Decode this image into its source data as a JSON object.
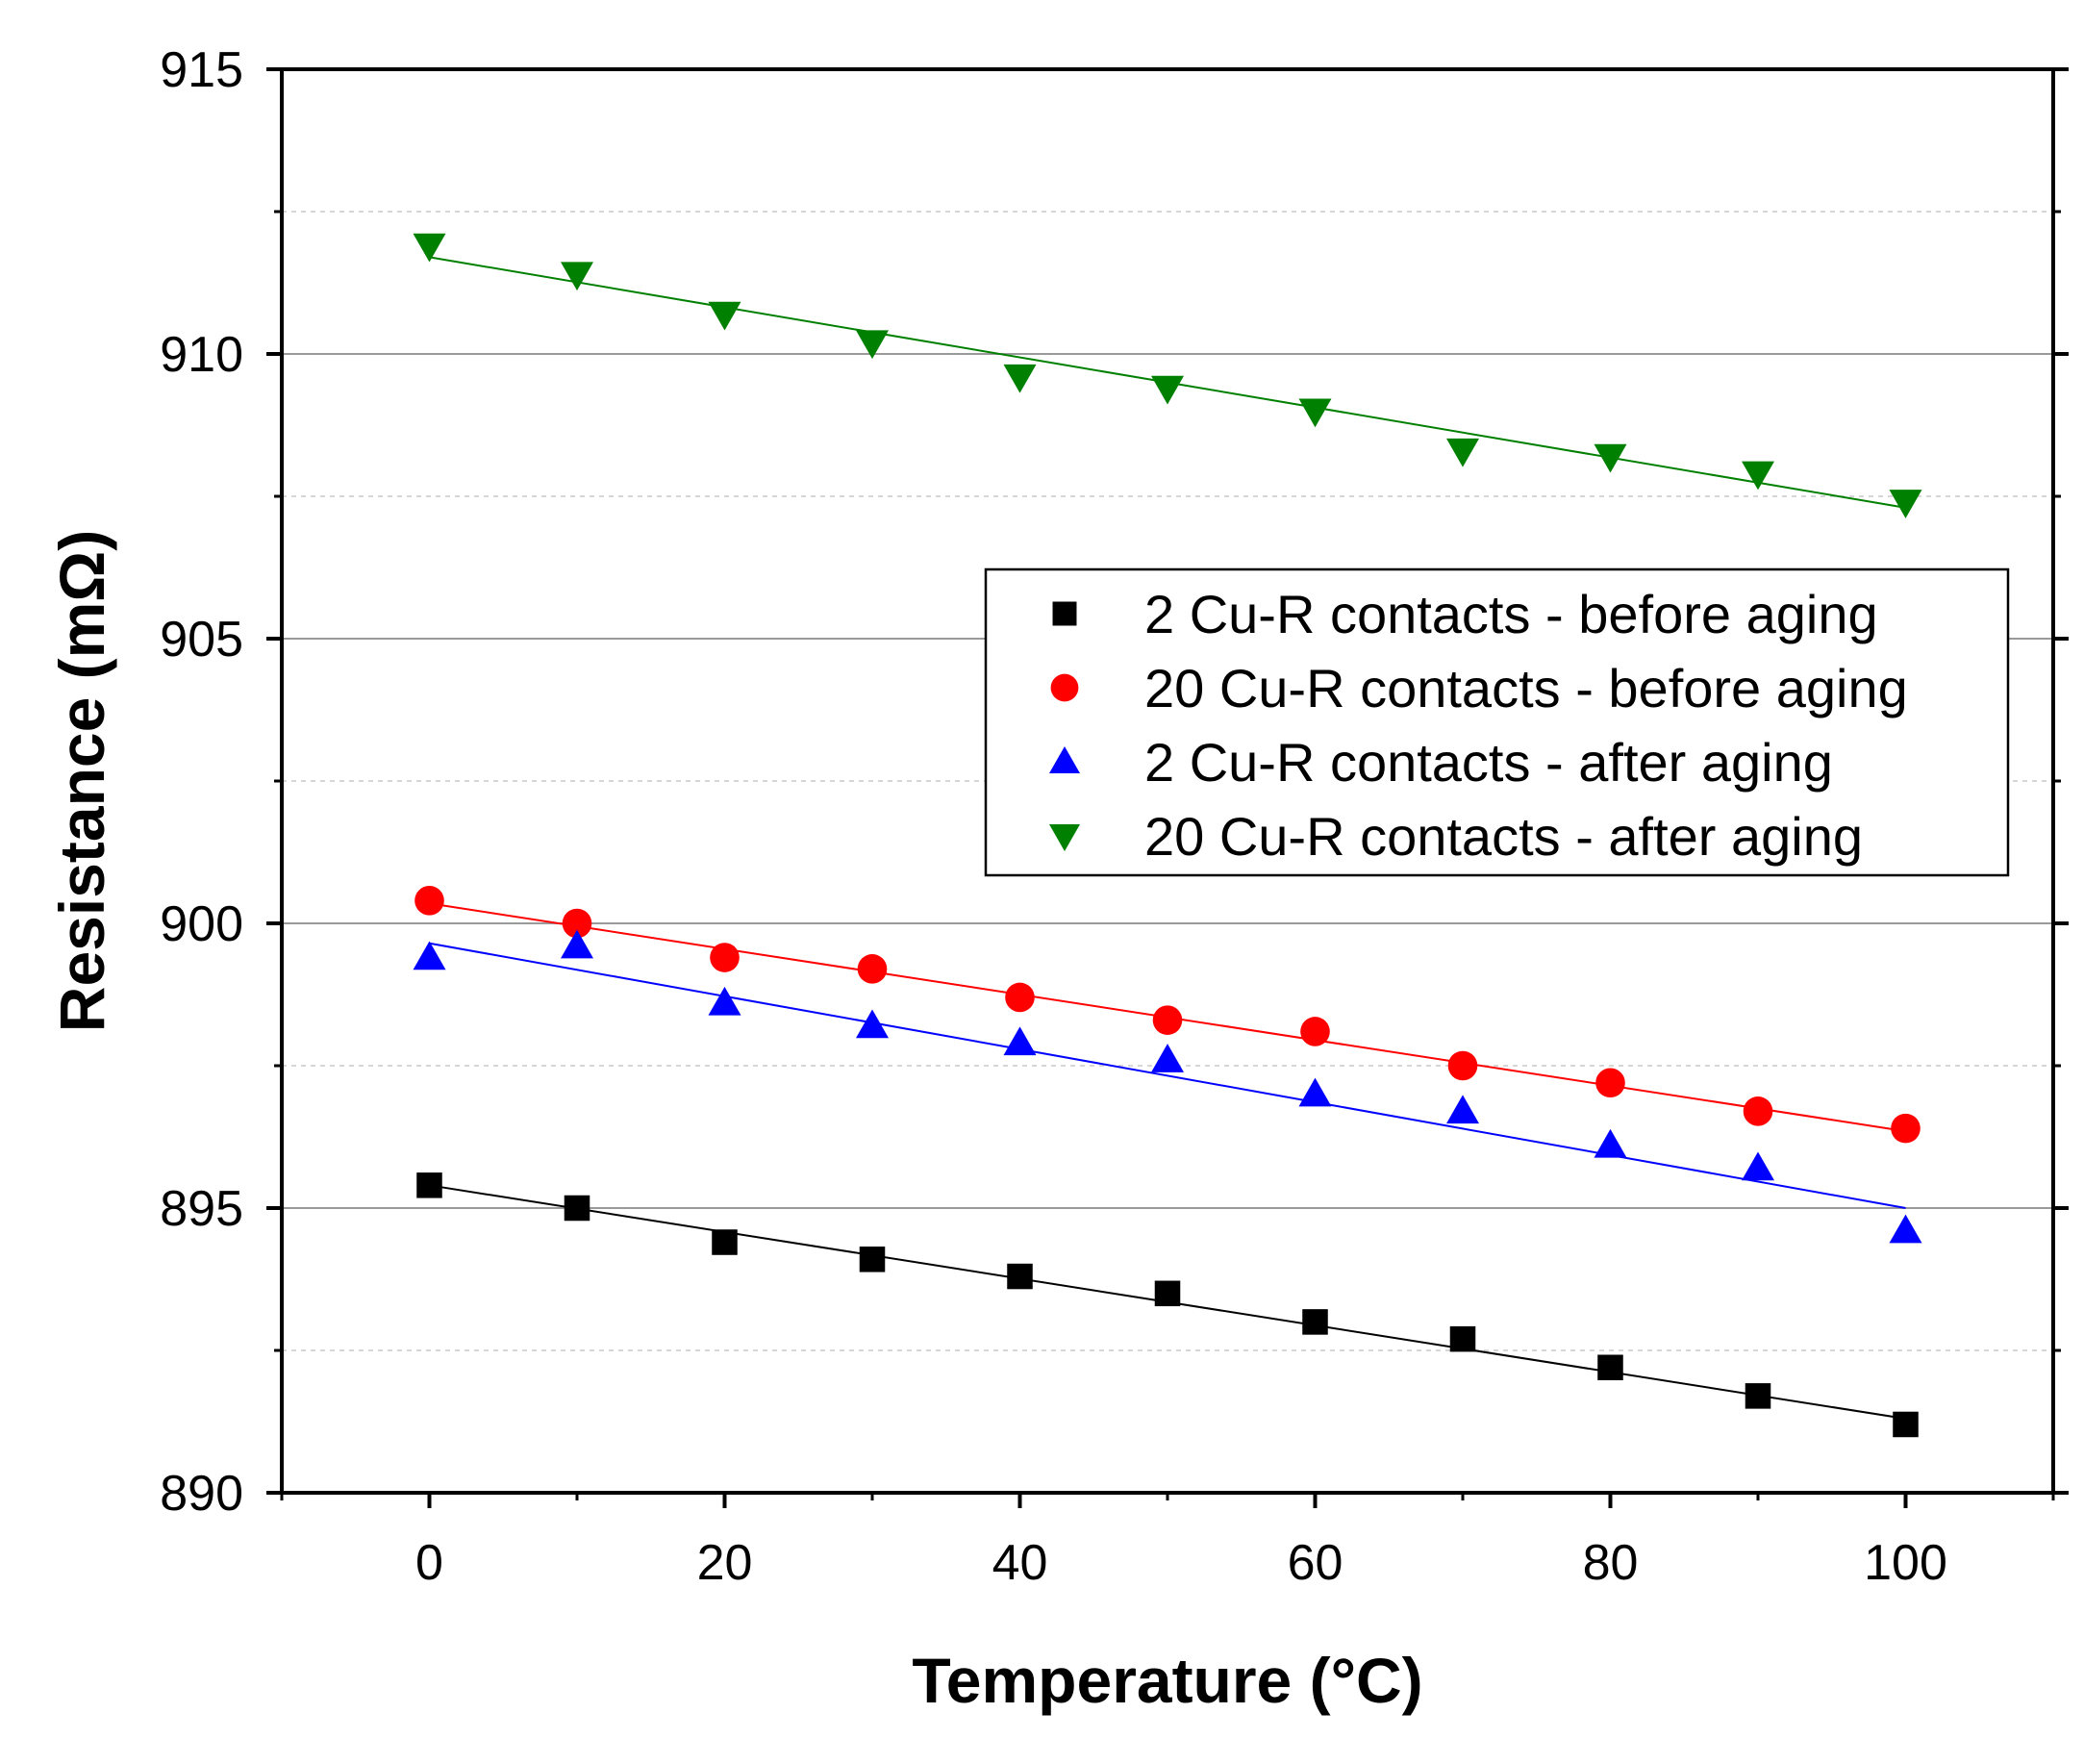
{
  "chart_data": {
    "type": "scatter",
    "title": "",
    "xlabel": "Temperature (°C)",
    "ylabel": "Resistance (mΩ)",
    "xlim": [
      -10,
      110
    ],
    "ylim": [
      890,
      915
    ],
    "x_ticks": [
      0,
      20,
      40,
      60,
      80,
      100
    ],
    "x_tick_labels": [
      "0",
      "20",
      "40",
      "60",
      "80",
      "100"
    ],
    "y_ticks": [
      890,
      895,
      900,
      905,
      910,
      915
    ],
    "y_tick_labels": [
      "890",
      "895",
      "900",
      "905",
      "910",
      "915"
    ],
    "y_minor_gridlines": [
      892.5,
      897.5,
      902.5,
      907.5,
      912.5
    ],
    "grid": true,
    "legend_position": "center-right",
    "x": [
      0,
      10,
      20,
      30,
      40,
      50,
      60,
      70,
      80,
      90,
      100
    ],
    "series": [
      {
        "name": "2 Cu-R contacts - before aging",
        "marker": "square",
        "color": "#000000",
        "values": [
          895.4,
          895.0,
          894.4,
          894.1,
          893.8,
          893.5,
          893.0,
          892.7,
          892.2,
          891.7,
          891.2
        ],
        "fit": [
          895.4,
          891.3
        ]
      },
      {
        "name": "20 Cu-R contacts - before aging",
        "marker": "circle",
        "color": "#ff0000",
        "values": [
          900.4,
          900.0,
          899.4,
          899.2,
          898.7,
          898.3,
          898.1,
          897.5,
          897.2,
          896.7,
          896.4
        ],
        "fit": [
          900.35,
          896.35
        ]
      },
      {
        "name": "2 Cu-R contacts - after aging",
        "marker": "triangle-up",
        "color": "#0000ff",
        "values": [
          899.4,
          899.6,
          898.6,
          898.2,
          897.9,
          897.6,
          897.0,
          896.7,
          896.1,
          895.7,
          894.6
        ],
        "fit": [
          899.65,
          895.0
        ]
      },
      {
        "name": "20 Cu-R contacts - after aging",
        "marker": "triangle-down",
        "color": "#008000",
        "values": [
          911.9,
          911.4,
          910.7,
          910.2,
          909.6,
          909.4,
          909.0,
          908.3,
          908.2,
          907.9,
          907.4
        ],
        "fit": [
          911.7,
          907.3
        ]
      }
    ]
  }
}
